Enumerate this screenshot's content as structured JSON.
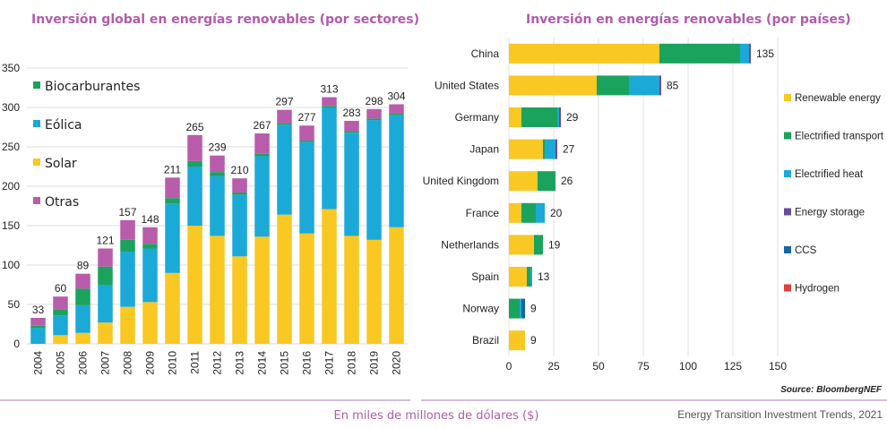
{
  "chart_data": [
    {
      "type": "bar",
      "stacked": true,
      "orientation": "vertical",
      "title": "Inversión global en energías renovables (por sectores)",
      "categories": [
        "2004",
        "2005",
        "2006",
        "2007",
        "2008",
        "2009",
        "2010",
        "2011",
        "2012",
        "2013",
        "2014",
        "2015",
        "2016",
        "2017",
        "2018",
        "2019",
        "2020"
      ],
      "series": [
        {
          "name": "Solar",
          "color": "#f9c823",
          "values": [
            0,
            11,
            14,
            27,
            47,
            53,
            90,
            150,
            137,
            111,
            136,
            164,
            140,
            171,
            137,
            132,
            148
          ]
        },
        {
          "name": "Eólica",
          "color": "#1ba9d8",
          "values": [
            20,
            25,
            35,
            48,
            70,
            68,
            88,
            75,
            76,
            78,
            102,
            114,
            116,
            129,
            131,
            152,
            142
          ]
        },
        {
          "name": "Biocarburantes",
          "color": "#1aa35d",
          "values": [
            3,
            8,
            21,
            23,
            15,
            6,
            7,
            7,
            5,
            3,
            3,
            2,
            2,
            2,
            2,
            2,
            2
          ]
        },
        {
          "name": "Otras",
          "color": "#b95cab",
          "values": [
            10,
            16,
            19,
            23,
            25,
            21,
            26,
            33,
            21,
            18,
            26,
            17,
            19,
            11,
            13,
            12,
            12
          ]
        }
      ],
      "totals": [
        33,
        60,
        89,
        121,
        157,
        148,
        211,
        265,
        239,
        210,
        267,
        297,
        277,
        313,
        283,
        298,
        304
      ],
      "ylim": [
        0,
        350
      ],
      "yticks": [
        0,
        50,
        100,
        150,
        200,
        250,
        300,
        350
      ],
      "legend_order": [
        "Biocarburantes",
        "Eólica",
        "Solar",
        "Otras"
      ],
      "legend_position": "top-left",
      "grid": "horizontal"
    },
    {
      "type": "bar",
      "stacked": true,
      "orientation": "horizontal",
      "title": "Inversión en energías renovables (por países)",
      "categories": [
        "China",
        "United States",
        "Germany",
        "Japan",
        "United Kingdom",
        "France",
        "Netherlands",
        "Spain",
        "Norway",
        "Brazil"
      ],
      "series": [
        {
          "name": "Renewable energy",
          "color": "#f9c823",
          "values": [
            84,
            49,
            7,
            19,
            16,
            7,
            14,
            10,
            0,
            9
          ]
        },
        {
          "name": "Electrified transport",
          "color": "#1aa35d",
          "values": [
            45,
            18,
            20,
            1,
            10,
            8,
            5,
            2,
            6,
            0
          ]
        },
        {
          "name": "Electrified heat",
          "color": "#1ba9d8",
          "values": [
            5,
            17,
            1,
            6,
            0,
            5,
            0,
            1,
            1,
            0
          ]
        },
        {
          "name": "Energy storage",
          "color": "#6a4a9c",
          "values": [
            1,
            1,
            1,
            1,
            0,
            0,
            0,
            0,
            0,
            0
          ]
        },
        {
          "name": "CCS",
          "color": "#1466a6",
          "values": [
            0,
            0,
            0,
            0,
            0,
            0,
            0,
            0,
            2,
            0
          ]
        },
        {
          "name": "Hydrogen",
          "color": "#e0403a",
          "values": [
            0,
            0,
            0,
            0,
            0,
            0,
            0,
            0,
            0,
            0
          ]
        }
      ],
      "totals": [
        135,
        85,
        29,
        27,
        26,
        20,
        19,
        13,
        9,
        9
      ],
      "xlim": [
        0,
        150
      ],
      "xticks": [
        0,
        25,
        50,
        75,
        100,
        125,
        150
      ],
      "legend_position": "right",
      "source": "Source: BloombergNEF"
    }
  ],
  "footer": {
    "unit": "En miles de millones de dólares ($)",
    "credit": "Energy Transition Investment Trends, 2021"
  }
}
